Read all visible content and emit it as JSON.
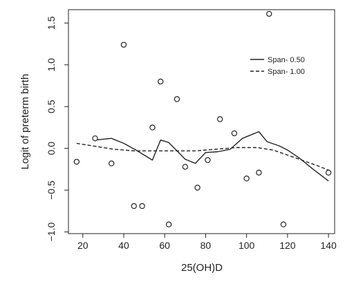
{
  "chart_data": {
    "type": "scatter",
    "title": "",
    "xlabel": "25(OH)D",
    "ylabel": "Logit of preterm birth",
    "xlim": [
      13,
      143
    ],
    "ylim": [
      -1.02,
      1.66
    ],
    "x_ticks": [
      20,
      40,
      60,
      80,
      100,
      120,
      140
    ],
    "y_ticks": [
      -1.0,
      -0.5,
      0.0,
      0.5,
      1.0,
      1.5
    ],
    "y_tick_labels": [
      "−1.0",
      "−0.5",
      "0.0",
      "0.5",
      "1.0",
      "1.5"
    ],
    "grid": false,
    "legend_position": "right",
    "points": [
      {
        "x": 17,
        "y": -0.16
      },
      {
        "x": 26,
        "y": 0.12
      },
      {
        "x": 34,
        "y": -0.18
      },
      {
        "x": 40,
        "y": 1.24
      },
      {
        "x": 45,
        "y": -0.69
      },
      {
        "x": 49,
        "y": -0.69
      },
      {
        "x": 54,
        "y": 0.25
      },
      {
        "x": 58,
        "y": 0.8
      },
      {
        "x": 62,
        "y": -0.91
      },
      {
        "x": 66,
        "y": 0.59
      },
      {
        "x": 70,
        "y": -0.22
      },
      {
        "x": 76,
        "y": -0.47
      },
      {
        "x": 81,
        "y": -0.14
      },
      {
        "x": 87,
        "y": 0.35
      },
      {
        "x": 94,
        "y": 0.18
      },
      {
        "x": 100,
        "y": -0.36
      },
      {
        "x": 106,
        "y": -0.29
      },
      {
        "x": 111,
        "y": 1.61
      },
      {
        "x": 118,
        "y": -0.91
      },
      {
        "x": 140,
        "y": -0.29
      }
    ],
    "series": [
      {
        "name": "Span- 0.50",
        "line_style": "solid",
        "x": [
          26,
          34,
          40,
          46,
          50,
          54,
          58,
          62,
          66,
          70,
          75,
          80,
          86,
          92,
          98,
          102,
          106,
          110,
          116,
          120,
          126,
          132,
          140
        ],
        "y": [
          0.1,
          0.12,
          0.06,
          -0.02,
          -0.08,
          -0.14,
          0.1,
          0.07,
          -0.03,
          -0.13,
          -0.18,
          -0.05,
          -0.04,
          -0.01,
          0.12,
          0.16,
          0.2,
          0.08,
          0.03,
          -0.02,
          -0.12,
          -0.24,
          -0.39
        ]
      },
      {
        "name": "Span- 1.00",
        "line_style": "dashed",
        "x": [
          17,
          25,
          35,
          45,
          55,
          65,
          75,
          85,
          95,
          105,
          113,
          120,
          128,
          135,
          140
        ],
        "y": [
          0.06,
          0.03,
          -0.01,
          -0.03,
          -0.03,
          -0.03,
          -0.03,
          -0.01,
          0.01,
          0.01,
          -0.02,
          -0.08,
          -0.15,
          -0.21,
          -0.26
        ]
      }
    ],
    "colors": {
      "ink": "#222222",
      "background": "#ffffff"
    }
  }
}
